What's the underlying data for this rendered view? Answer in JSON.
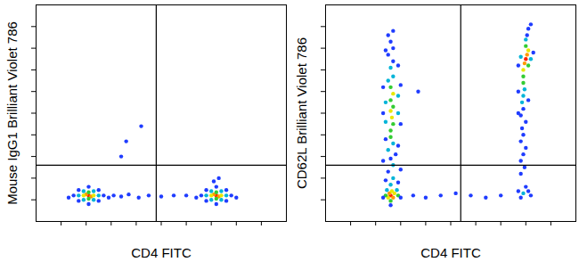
{
  "chart_data": [
    {
      "type": "scatter",
      "x_label": "CD4 FITC",
      "y_label": "Mouse IgG1 Brilliant Violet 786",
      "xlim": [
        0,
        100
      ],
      "ylim": [
        0,
        100
      ],
      "xticks": [
        10,
        20,
        30,
        40,
        50,
        60,
        70,
        80,
        90
      ],
      "yticks": [
        10,
        20,
        30,
        40,
        50,
        60,
        70,
        80,
        90
      ],
      "tick_labels": false,
      "gates": {
        "x": 48,
        "y": 26
      },
      "points": [
        [
          21,
          12,
          "#ff2000"
        ],
        [
          20,
          12.5,
          "#ff9900"
        ],
        [
          22,
          11.5,
          "#ff9900"
        ],
        [
          19,
          12,
          "#e8e800"
        ],
        [
          23,
          12,
          "#e8e800"
        ],
        [
          21,
          13.5,
          "#33cc33"
        ],
        [
          21,
          10.5,
          "#33cc33"
        ],
        [
          17,
          12,
          "#00b4d8"
        ],
        [
          25,
          12,
          "#00b4d8"
        ],
        [
          19,
          14,
          "#00b4d8"
        ],
        [
          23,
          10,
          "#00b4d8"
        ],
        [
          19,
          10,
          "#00b4d8"
        ],
        [
          23,
          14,
          "#00b4d8"
        ],
        [
          15,
          12,
          "#1f3cff"
        ],
        [
          27,
          12,
          "#1f3cff"
        ],
        [
          17,
          14.5,
          "#1f3cff"
        ],
        [
          25,
          9.5,
          "#1f3cff"
        ],
        [
          17,
          9.5,
          "#1f3cff"
        ],
        [
          25,
          14.5,
          "#1f3cff"
        ],
        [
          13,
          11,
          "#1f3cff"
        ],
        [
          29,
          11,
          "#1f3cff"
        ],
        [
          21,
          16,
          "#1f3cff"
        ],
        [
          21,
          8,
          "#1f3cff"
        ],
        [
          31,
          12,
          "#1f3cff"
        ],
        [
          34,
          11.5,
          "#1f3cff"
        ],
        [
          37,
          12.5,
          "#1f3cff"
        ],
        [
          41,
          11,
          "#1f3cff"
        ],
        [
          45,
          12,
          "#1f3cff"
        ],
        [
          50,
          11.5,
          "#1f3cff"
        ],
        [
          55,
          12,
          "#1f3cff"
        ],
        [
          60,
          12,
          "#1f3cff"
        ],
        [
          36,
          37,
          "#1f3cff"
        ],
        [
          42,
          44,
          "#1f3cff"
        ],
        [
          34,
          30,
          "#1f3cff"
        ],
        [
          72,
          12,
          "#ff2000"
        ],
        [
          71,
          12.5,
          "#ff9900"
        ],
        [
          73,
          11.5,
          "#ff9900"
        ],
        [
          70,
          12,
          "#e8e800"
        ],
        [
          74,
          12,
          "#e8e800"
        ],
        [
          72,
          13.5,
          "#33cc33"
        ],
        [
          72,
          10.5,
          "#33cc33"
        ],
        [
          68,
          12,
          "#00b4d8"
        ],
        [
          76,
          12,
          "#00b4d8"
        ],
        [
          70,
          14,
          "#00b4d8"
        ],
        [
          74,
          10,
          "#00b4d8"
        ],
        [
          70,
          10,
          "#00b4d8"
        ],
        [
          74,
          14,
          "#00b4d8"
        ],
        [
          66,
          12,
          "#1f3cff"
        ],
        [
          78,
          12,
          "#1f3cff"
        ],
        [
          68,
          14.5,
          "#1f3cff"
        ],
        [
          76,
          9.5,
          "#1f3cff"
        ],
        [
          68,
          9.5,
          "#1f3cff"
        ],
        [
          76,
          14.5,
          "#1f3cff"
        ],
        [
          72,
          16,
          "#1f3cff"
        ],
        [
          72,
          8,
          "#1f3cff"
        ],
        [
          71,
          18.5,
          "#1f3cff"
        ],
        [
          73,
          20,
          "#1f3cff"
        ],
        [
          64,
          11,
          "#1f3cff"
        ],
        [
          80,
          11,
          "#1f3cff"
        ]
      ]
    },
    {
      "type": "scatter",
      "x_label": "CD4 FITC",
      "y_label": "CD62L Brilliant Violet 786",
      "xlim": [
        0,
        100
      ],
      "ylim": [
        0,
        100
      ],
      "xticks": [
        10,
        20,
        30,
        40,
        50,
        60,
        70,
        80,
        90
      ],
      "yticks": [
        10,
        20,
        30,
        40,
        50,
        60,
        70,
        80,
        90
      ],
      "tick_labels": false,
      "gates": {
        "x": 54,
        "y": 26
      },
      "points": [
        [
          26,
          12,
          "#ff2000"
        ],
        [
          27,
          11,
          "#ff9900"
        ],
        [
          25.5,
          13,
          "#ff9900"
        ],
        [
          26.5,
          14,
          "#e8e800"
        ],
        [
          25,
          11,
          "#e8e800"
        ],
        [
          27.5,
          13,
          "#e8e800"
        ],
        [
          24,
          12,
          "#33cc33"
        ],
        [
          29,
          12,
          "#33cc33"
        ],
        [
          26,
          9.5,
          "#33cc33"
        ],
        [
          24.5,
          14.5,
          "#00b4d8"
        ],
        [
          28.5,
          14.5,
          "#00b4d8"
        ],
        [
          23,
          11,
          "#1f3cff"
        ],
        [
          30,
          11,
          "#1f3cff"
        ],
        [
          26,
          7.5,
          "#1f3cff"
        ],
        [
          26,
          17,
          "#00b4d8"
        ],
        [
          27,
          20,
          "#00b4d8"
        ],
        [
          25,
          23,
          "#1f3cff"
        ],
        [
          27,
          26,
          "#00b4d8"
        ],
        [
          26,
          29,
          "#1f3cff"
        ],
        [
          28,
          31,
          "#1f3cff"
        ],
        [
          25,
          33,
          "#00b4d8"
        ],
        [
          27,
          36,
          "#00b4d8"
        ],
        [
          26,
          39,
          "#33cc33"
        ],
        [
          24,
          38,
          "#1f3cff"
        ],
        [
          29,
          35,
          "#1f3cff"
        ],
        [
          23,
          28,
          "#1f3cff"
        ],
        [
          30,
          24,
          "#1f3cff"
        ],
        [
          24,
          19,
          "#1f3cff"
        ],
        [
          29,
          18,
          "#1f3cff"
        ],
        [
          26,
          42,
          "#33cc33"
        ],
        [
          27,
          45,
          "#33cc33"
        ],
        [
          26.5,
          48,
          "#e8e800"
        ],
        [
          26,
          51,
          "#e8e800"
        ],
        [
          27,
          53,
          "#33cc33"
        ],
        [
          26,
          56,
          "#33cc33"
        ],
        [
          27,
          59,
          "#e8e800"
        ],
        [
          26,
          62,
          "#33cc33"
        ],
        [
          25,
          65,
          "#00b4d8"
        ],
        [
          27,
          67,
          "#00b4d8"
        ],
        [
          24,
          46,
          "#00b4d8"
        ],
        [
          29,
          50,
          "#00b4d8"
        ],
        [
          24,
          55,
          "#00b4d8"
        ],
        [
          29,
          58,
          "#00b4d8"
        ],
        [
          23,
          62,
          "#1f3cff"
        ],
        [
          30,
          63,
          "#1f3cff"
        ],
        [
          23,
          50,
          "#1f3cff"
        ],
        [
          30,
          45,
          "#1f3cff"
        ],
        [
          26,
          71,
          "#00b4d8"
        ],
        [
          27,
          74,
          "#1f3cff"
        ],
        [
          25,
          77,
          "#1f3cff"
        ],
        [
          27,
          80,
          "#1f3cff"
        ],
        [
          26,
          83,
          "#1f3cff"
        ],
        [
          25,
          86,
          "#1f3cff"
        ],
        [
          27,
          88,
          "#1f3cff"
        ],
        [
          29,
          72,
          "#1f3cff"
        ],
        [
          24,
          79,
          "#1f3cff"
        ],
        [
          35,
          12,
          "#1f3cff"
        ],
        [
          40,
          11,
          "#1f3cff"
        ],
        [
          46,
          12,
          "#1f3cff"
        ],
        [
          52,
          13,
          "#1f3cff"
        ],
        [
          58,
          12,
          "#1f3cff"
        ],
        [
          64,
          11,
          "#1f3cff"
        ],
        [
          70,
          12,
          "#1f3cff"
        ],
        [
          37,
          60,
          "#1f3cff"
        ],
        [
          80,
          75,
          "#ff2000"
        ],
        [
          79.5,
          73,
          "#ff9900"
        ],
        [
          80.5,
          77,
          "#ff9900"
        ],
        [
          79,
          70,
          "#e8e800"
        ],
        [
          81,
          79,
          "#e8e800"
        ],
        [
          80,
          81,
          "#33cc33"
        ],
        [
          79,
          67,
          "#33cc33"
        ],
        [
          81,
          72,
          "#33cc33"
        ],
        [
          78,
          76,
          "#00b4d8"
        ],
        [
          82,
          75,
          "#00b4d8"
        ],
        [
          80,
          84,
          "#00b4d8"
        ],
        [
          80.5,
          86,
          "#1f3cff"
        ],
        [
          81,
          89,
          "#1f3cff"
        ],
        [
          82,
          91,
          "#1f3cff"
        ],
        [
          77,
          72,
          "#1f3cff"
        ],
        [
          83,
          78,
          "#1f3cff"
        ],
        [
          79,
          64,
          "#33cc33"
        ],
        [
          79.5,
          61,
          "#00b4d8"
        ],
        [
          79,
          58,
          "#00b4d8"
        ],
        [
          78.5,
          55,
          "#00b4d8"
        ],
        [
          79,
          52,
          "#1f3cff"
        ],
        [
          78,
          49,
          "#1f3cff"
        ],
        [
          80,
          46,
          "#1f3cff"
        ],
        [
          78.5,
          43,
          "#1f3cff"
        ],
        [
          79,
          40,
          "#1f3cff"
        ],
        [
          78,
          37,
          "#1f3cff"
        ],
        [
          80,
          34,
          "#1f3cff"
        ],
        [
          77,
          60,
          "#1f3cff"
        ],
        [
          81,
          56,
          "#1f3cff"
        ],
        [
          77,
          50,
          "#1f3cff"
        ],
        [
          79,
          31,
          "#1f3cff"
        ],
        [
          78,
          28,
          "#1f3cff"
        ],
        [
          79.5,
          25,
          "#1f3cff"
        ],
        [
          78,
          22,
          "#1f3cff"
        ],
        [
          77,
          14,
          "#1f3cff"
        ],
        [
          79,
          13,
          "#00b4d8"
        ],
        [
          81,
          14,
          "#1f3cff"
        ],
        [
          80,
          16,
          "#1f3cff"
        ],
        [
          78,
          11,
          "#1f3cff"
        ],
        [
          82,
          12,
          "#1f3cff"
        ]
      ]
    }
  ]
}
